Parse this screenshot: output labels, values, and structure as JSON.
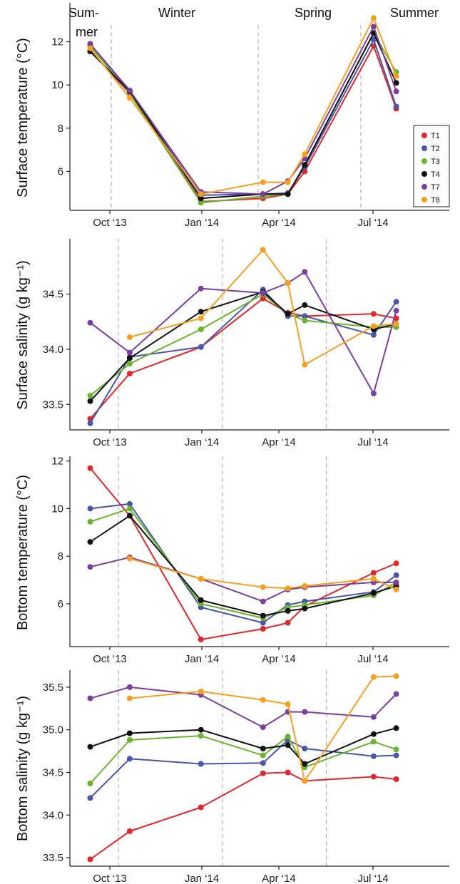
{
  "seasons": {
    "summer_start_line1": "Sum-",
    "summer_start_line2": "mer",
    "winter": "Winter",
    "spring": "Spring",
    "summer_end": "Summer"
  },
  "x_tick_labels": [
    "Oct ‘13",
    "Jan ‘14",
    "Apr ‘14",
    "Jul ‘14"
  ],
  "series_colors": {
    "T1": "#e3262b",
    "T2": "#4a56a8",
    "T3": "#6ab42d",
    "T4": "#111111",
    "T7": "#7b3f9e",
    "T8": "#f5a01e"
  },
  "legend": [
    "T1",
    "T2",
    "T3",
    "T4",
    "T7",
    "T8"
  ],
  "chart_data": [
    {
      "type": "line",
      "ylabel": "Surface temperature (°C)",
      "ylim": [
        4.2,
        13.8
      ],
      "yticks": [
        6,
        8,
        10,
        12
      ],
      "xlim": [
        -18,
        318
      ],
      "x": [
        0,
        35,
        98,
        153,
        175,
        190,
        251,
        271
      ],
      "series": [
        {
          "name": "T1",
          "values": [
            11.6,
            9.6,
            4.6,
            4.75,
            4.95,
            6.0,
            11.8,
            8.9
          ]
        },
        {
          "name": "T2",
          "values": [
            11.9,
            9.7,
            4.9,
            4.95,
            5.0,
            6.2,
            12.1,
            9.0
          ]
        },
        {
          "name": "T3",
          "values": [
            11.8,
            9.6,
            4.55,
            4.85,
            4.95,
            6.3,
            12.4,
            10.6
          ]
        },
        {
          "name": "T4",
          "values": [
            11.55,
            9.7,
            4.75,
            4.95,
            4.95,
            6.3,
            12.4,
            10.1
          ]
        },
        {
          "name": "T7",
          "values": [
            11.9,
            9.75,
            5.05,
            4.95,
            5.55,
            6.6,
            12.7,
            9.7
          ]
        },
        {
          "name": "T8",
          "values": [
            11.7,
            9.4,
            4.95,
            5.5,
            5.5,
            6.8,
            13.1,
            10.4
          ]
        }
      ]
    },
    {
      "type": "line",
      "ylabel": "Surface salinity (g kg⁻¹)",
      "ylim": [
        33.27,
        35.0
      ],
      "yticks": [
        33.5,
        34.0,
        34.5
      ],
      "xlim": [
        -18,
        318
      ],
      "x": [
        0,
        35,
        98,
        153,
        175,
        190,
        251,
        271
      ],
      "series": [
        {
          "name": "T1",
          "values": [
            33.37,
            33.78,
            34.02,
            34.46,
            34.33,
            34.3,
            34.32,
            34.28
          ]
        },
        {
          "name": "T2",
          "values": [
            33.33,
            33.93,
            34.02,
            34.54,
            34.3,
            34.3,
            34.13,
            34.43
          ]
        },
        {
          "name": "T3",
          "values": [
            33.58,
            33.87,
            34.18,
            34.5,
            34.32,
            34.26,
            34.2,
            34.2
          ]
        },
        {
          "name": "T4",
          "values": [
            33.53,
            33.92,
            34.34,
            34.52,
            34.32,
            34.4,
            34.18,
            34.23
          ]
        },
        {
          "name": "T7",
          "values": [
            34.24,
            33.97,
            34.55,
            34.51,
            34.6,
            34.7,
            33.6,
            34.35
          ]
        },
        {
          "name": "T8",
          "values": [
            null,
            34.11,
            34.28,
            34.9,
            34.6,
            33.86,
            34.21,
            34.23
          ]
        }
      ]
    },
    {
      "type": "line",
      "ylabel": "Bottom temperature (°C)",
      "ylim": [
        4.2,
        12.2
      ],
      "yticks": [
        6,
        8,
        10,
        12
      ],
      "xlim": [
        -18,
        318
      ],
      "x": [
        0,
        35,
        98,
        153,
        175,
        190,
        251,
        271
      ],
      "series": [
        {
          "name": "T1",
          "values": [
            11.7,
            9.7,
            4.5,
            4.95,
            5.2,
            5.9,
            7.3,
            7.7
          ]
        },
        {
          "name": "T2",
          "values": [
            10.0,
            10.2,
            5.85,
            5.2,
            5.95,
            6.1,
            6.5,
            7.2
          ]
        },
        {
          "name": "T3",
          "values": [
            9.45,
            10.0,
            6.0,
            5.4,
            5.85,
            5.95,
            6.35,
            6.9
          ]
        },
        {
          "name": "T4",
          "values": [
            8.6,
            9.7,
            6.15,
            5.5,
            5.7,
            5.8,
            6.45,
            6.75
          ]
        },
        {
          "name": "T7",
          "values": [
            7.55,
            7.95,
            7.05,
            6.1,
            6.6,
            6.7,
            6.9,
            6.9
          ]
        },
        {
          "name": "T8",
          "values": [
            null,
            7.9,
            7.05,
            6.7,
            6.65,
            6.75,
            7.05,
            6.6
          ]
        }
      ]
    },
    {
      "type": "line",
      "ylabel": "Bottom salinity (g kg⁻¹)",
      "ylim": [
        33.4,
        35.7
      ],
      "yticks": [
        33.5,
        34.0,
        34.5,
        35.0,
        35.5
      ],
      "xlim": [
        -18,
        318
      ],
      "x": [
        0,
        35,
        98,
        153,
        175,
        190,
        251,
        271
      ],
      "series": [
        {
          "name": "T1",
          "values": [
            33.48,
            33.81,
            34.09,
            34.49,
            34.5,
            34.4,
            34.45,
            34.42
          ]
        },
        {
          "name": "T2",
          "values": [
            34.2,
            34.66,
            34.6,
            34.61,
            34.88,
            34.78,
            34.69,
            34.7
          ]
        },
        {
          "name": "T3",
          "values": [
            34.37,
            34.88,
            34.93,
            34.7,
            34.92,
            34.56,
            34.86,
            34.77
          ]
        },
        {
          "name": "T4",
          "values": [
            34.8,
            34.96,
            35.0,
            34.78,
            34.82,
            34.6,
            34.95,
            35.02
          ]
        },
        {
          "name": "T7",
          "values": [
            35.37,
            35.5,
            35.41,
            35.03,
            35.21,
            35.21,
            35.15,
            35.42
          ]
        },
        {
          "name": "T8",
          "values": [
            null,
            35.37,
            35.45,
            35.35,
            35.3,
            34.4,
            35.62,
            35.63
          ]
        }
      ]
    }
  ]
}
